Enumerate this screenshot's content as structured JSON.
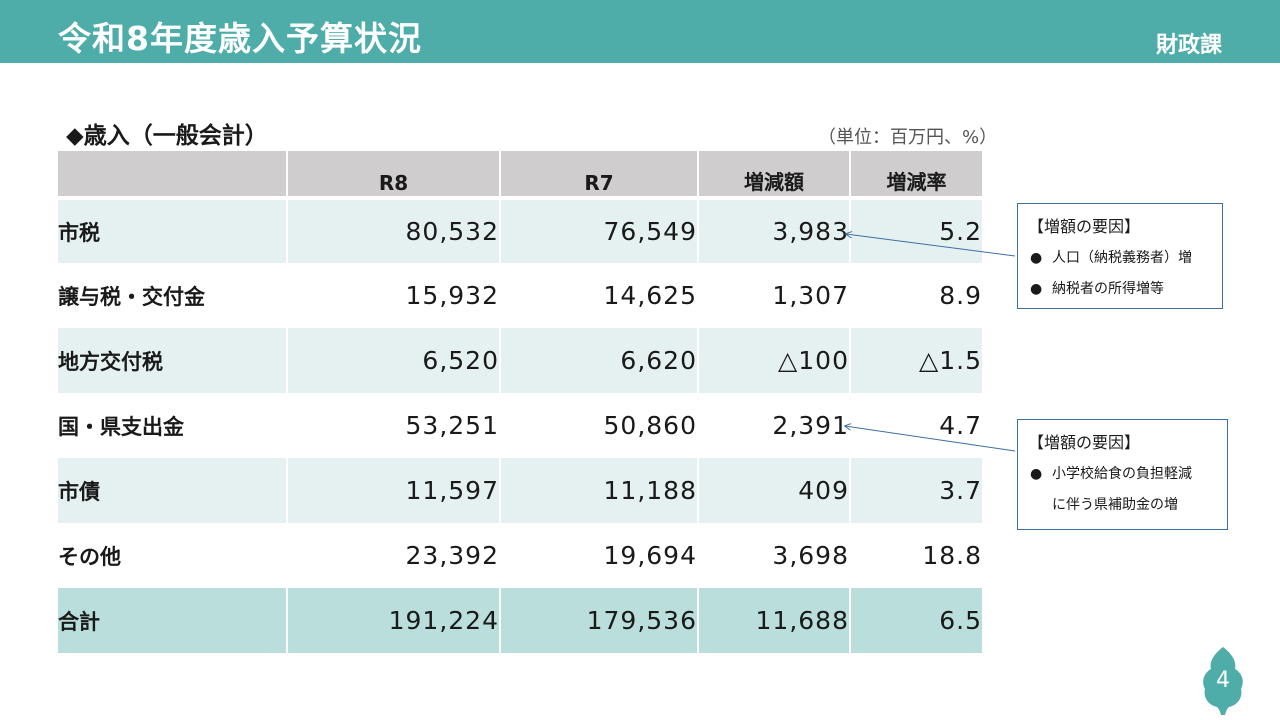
{
  "header": {
    "title": "令和8年度歳入予算状況",
    "department": "財政課"
  },
  "section": {
    "title": "◆歳入（一般会計）",
    "unit": "（単位：百万円、%）"
  },
  "table": {
    "headers": [
      "",
      "R8",
      "R7",
      "増減額",
      "増減率"
    ],
    "rows": [
      {
        "label": "市税",
        "r8": "80,532",
        "r7": "76,549",
        "diff": "3,983",
        "rate": "5.2"
      },
      {
        "label": "譲与税・交付金",
        "r8": "15,932",
        "r7": "14,625",
        "diff": "1,307",
        "rate": "8.9"
      },
      {
        "label": "地方交付税",
        "r8": "6,520",
        "r7": "6,620",
        "diff": "△100",
        "rate": "△1.5"
      },
      {
        "label": "国・県支出金",
        "r8": "53,251",
        "r7": "50,860",
        "diff": "2,391",
        "rate": "4.7"
      },
      {
        "label": "市債",
        "r8": "11,597",
        "r7": "11,188",
        "diff": "409",
        "rate": "3.7"
      },
      {
        "label": "その他",
        "r8": "23,392",
        "r7": "19,694",
        "diff": "3,698",
        "rate": "18.8"
      },
      {
        "label": "合計",
        "r8": "191,224",
        "r7": "179,536",
        "diff": "11,688",
        "rate": "6.5"
      }
    ]
  },
  "callouts": [
    {
      "title": "【増額の要因】",
      "items": [
        "人口（納税義務者）増",
        "納税者の所得増等"
      ]
    },
    {
      "title": "【増額の要因】",
      "items": [
        "小学校給食の負担軽減",
        "に伴う県補助金の増"
      ]
    }
  ],
  "bullet_char": "●",
  "page_number": "4",
  "colors": {
    "header": "#4fada9",
    "row_alt": "#e4f1f0",
    "total": "#b9dedb",
    "thead": "#cfcdcd",
    "callout_border": "#3d6ea3",
    "badge": "#4fada9"
  }
}
